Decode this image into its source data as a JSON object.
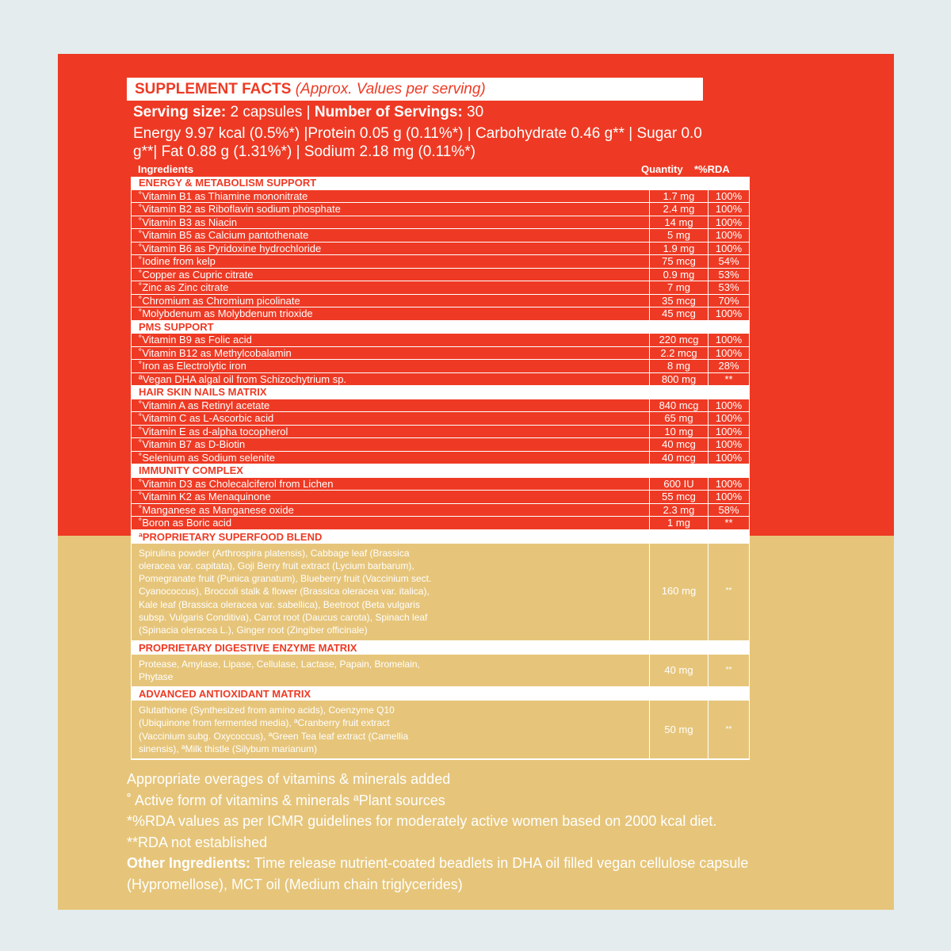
{
  "title": {
    "main": "SUPPLEMENT FACTS",
    "sub": "(Approx. Values per serving)"
  },
  "serving": {
    "size_label": "Serving size:",
    "size_value": "2 capsules",
    "sep": "|",
    "servings_label": "Number of Servings:",
    "servings_value": "30"
  },
  "nutrition": "Energy 9.97 kcal (0.5%*) |Protein 0.05 g (0.11%*) | Carbohydrate 0.46 g** | Sugar 0.0 g**| Fat 0.88 g (1.31%*) | Sodium 2.18 mg (0.11%*)",
  "columns": {
    "ingredients": "Ingredients",
    "quantity": "Quantity",
    "rda": "*%RDA"
  },
  "colors": {
    "red": "#ee3a24",
    "gold": "#e6c57a",
    "background": "#e4ecee"
  },
  "sections": [
    {
      "title": "ENERGY & METABOLISM SUPPORT",
      "rows": [
        [
          "˚Vitamin B1 as Thiamine mononitrate",
          "1.7 mg",
          "100%"
        ],
        [
          "˚Vitamin B2 as Riboflavin sodium phosphate",
          "2.4 mg",
          "100%"
        ],
        [
          "˚Vitamin B3 as Niacin",
          "14 mg",
          "100%"
        ],
        [
          "˚Vitamin B5 as Calcium pantothenate",
          "5 mg",
          "100%"
        ],
        [
          "˚Vitamin B6 as Pyridoxine hydrochloride",
          "1.9 mg",
          "100%"
        ],
        [
          "˚Iodine from kelp",
          "75 mcg",
          "54%"
        ],
        [
          "˚Copper as Cupric citrate",
          "0.9 mg",
          "53%"
        ],
        [
          "˚Zinc as Zinc citrate",
          "7 mg",
          "53%"
        ],
        [
          "˚Chromium as Chromium picolinate",
          "35 mcg",
          "70%"
        ],
        [
          "˚Molybdenum as Molybdenum trioxide",
          "45 mcg",
          "100%"
        ]
      ]
    },
    {
      "title": "PMS SUPPORT",
      "rows": [
        [
          "˚Vitamin B9 as Folic acid",
          "220 mcg",
          "100%"
        ],
        [
          "˚Vitamin B12 as Methylcobalamin",
          "2.2 mcg",
          "100%"
        ],
        [
          "˚Iron as Electrolytic iron",
          "8 mg",
          "28%"
        ],
        [
          "ªVegan DHA algal oil from Schizochytrium sp.",
          "800 mg",
          "**"
        ]
      ]
    },
    {
      "title": "HAIR SKIN NAILS MATRIX",
      "rows": [
        [
          "˚Vitamin A as Retinyl acetate",
          "840 mcg",
          "100%"
        ],
        [
          "˚Vitamin C as L-Ascorbic acid",
          "65 mg",
          "100%"
        ],
        [
          "˚Vitamin E as d-alpha tocopherol",
          "10 mg",
          "100%"
        ],
        [
          "˚Vitamin B7 as D-Biotin",
          "40 mcg",
          "100%"
        ],
        [
          "˚Selenium as Sodium selenite",
          "40 mcg",
          "100%"
        ]
      ]
    },
    {
      "title": "IMMUNITY COMPLEX",
      "rows": [
        [
          "˚Vitamin D3 as Cholecalciferol from Lichen",
          "600 IU",
          "100%"
        ],
        [
          "˚Vitamin K2 as Menaquinone",
          "55 mcg",
          "100%"
        ],
        [
          "˚Manganese as Manganese oxide",
          "2.3 mg",
          "58%"
        ],
        [
          "˚Boron as Boric acid",
          "1 mg",
          "**"
        ]
      ]
    }
  ],
  "blends": [
    {
      "title": "ªPROPRIETARY SUPERFOOD BLEND",
      "text": "Spirulina powder (Arthrospira platensis), Cabbage leaf (Brassica oleracea var. capitata), Goji Berry fruit extract (Lycium barbarum), Pomegranate fruit (Punica granatum), Blueberry fruit (Vaccinium sect. Cyanococcus), Broccoli stalk & flower (Brassica oleracea var. italica), Kale leaf (Brassica oleracea var. sabellica), Beetroot (Beta vulgaris subsp. Vulgaris Conditiva), Carrot root (Daucus carota), Spinach leaf (Spinacia oleracea L.), Ginger root (Zingiber officinale)",
      "quantity": "160 mg",
      "rda": "**"
    },
    {
      "title": "PROPRIETARY DIGESTIVE ENZYME MATRIX",
      "text": "Protease, Amylase, Lipase, Cellulase, Lactase, Papain, Bromelain, Phytase",
      "quantity": "40 mg",
      "rda": "**"
    },
    {
      "title": "ADVANCED ANTIOXIDANT MATRIX",
      "text": "Glutathione (Synthesized from amino acids), Coenzyme Q10 (Ubiquinone from fermented media), ªCranberry fruit extract (Vaccinium subg. Oxycoccus), ªGreen Tea leaf extract (Camellia sinensis), ªMilk thistle (Silybum marianum)",
      "quantity": "50 mg",
      "rda": "**"
    }
  ],
  "footer": {
    "overages": "Appropriate overages of vitamins & minerals added",
    "active": "˚ Active form of vitamins & minerals ªPlant sources",
    "rda_note": "*%RDA values as per ICMR guidelines for moderately active women based on 2000 kcal diet.",
    "not_established": "**RDA not established",
    "other_label": "Other Ingredients:",
    "other_text": "Time release nutrient-coated beadlets in DHA oil filled vegan cellulose capsule (Hypromellose), MCT oil (Medium chain triglycerides)"
  }
}
